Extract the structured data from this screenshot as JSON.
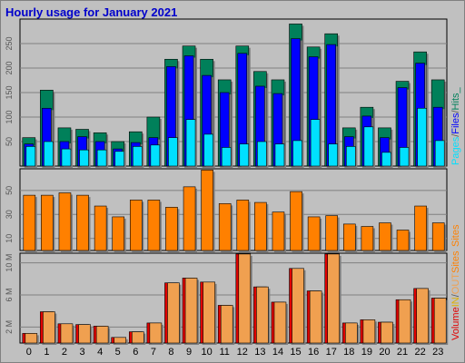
{
  "title": "Hourly usage for January 2021",
  "colors": {
    "hits": "#00805a",
    "files": "#0000ff",
    "pages": "#00e0ff",
    "sites": "#ff8000",
    "volume": "#e00000",
    "in": "#e0b000",
    "out": "#f0a050",
    "frame_bg": "#c0c0c0"
  },
  "chart_data": [
    {
      "type": "bar",
      "title": "Hourly usage for January 2021",
      "categories": [
        "0",
        "1",
        "2",
        "3",
        "4",
        "5",
        "6",
        "7",
        "8",
        "9",
        "10",
        "11",
        "12",
        "13",
        "14",
        "15",
        "16",
        "17",
        "18",
        "19",
        "20",
        "21",
        "22",
        "23"
      ],
      "yticks": [
        "50",
        "100",
        "150",
        "200",
        "250"
      ],
      "ylim": [
        0,
        300
      ],
      "grid": true,
      "side_label": [
        "Pages",
        "/",
        "Files",
        "/",
        "Hits",
        "_"
      ],
      "series": [
        {
          "name": "Hits",
          "values": [
            58,
            155,
            78,
            75,
            68,
            50,
            70,
            100,
            218,
            245,
            218,
            176,
            245,
            193,
            176,
            290,
            243,
            270,
            78,
            120,
            78,
            173,
            233,
            176
          ]
        },
        {
          "name": "Files",
          "values": [
            45,
            118,
            50,
            60,
            50,
            35,
            48,
            58,
            203,
            225,
            185,
            150,
            230,
            163,
            148,
            260,
            223,
            248,
            60,
            102,
            58,
            160,
            210,
            120
          ]
        },
        {
          "name": "Pages",
          "values": [
            40,
            50,
            35,
            33,
            33,
            30,
            40,
            43,
            58,
            95,
            65,
            38,
            45,
            50,
            45,
            52,
            95,
            45,
            40,
            80,
            28,
            38,
            118,
            52
          ]
        }
      ]
    },
    {
      "type": "bar",
      "categories": [
        "0",
        "1",
        "2",
        "3",
        "4",
        "5",
        "6",
        "7",
        "8",
        "9",
        "10",
        "11",
        "12",
        "13",
        "14",
        "15",
        "16",
        "17",
        "18",
        "19",
        "20",
        "21",
        "22",
        "23"
      ],
      "yticks": [
        "10",
        "30",
        "50"
      ],
      "ylim": [
        0,
        68
      ],
      "grid": true,
      "side_label": [
        "Sites"
      ],
      "series": [
        {
          "name": "Sites",
          "values": [
            46,
            46,
            48,
            46,
            37,
            28,
            42,
            42,
            36,
            53,
            67,
            39,
            42,
            40,
            32,
            49,
            28,
            29,
            22,
            20,
            23,
            17,
            37,
            23
          ]
        }
      ]
    },
    {
      "type": "bar",
      "categories": [
        "0",
        "1",
        "2",
        "3",
        "4",
        "5",
        "6",
        "7",
        "8",
        "9",
        "10",
        "11",
        "12",
        "13",
        "14",
        "15",
        "16",
        "17",
        "18",
        "19",
        "20",
        "21",
        "22",
        "23"
      ],
      "yticks": [
        "2 M",
        "6 M",
        "10 M"
      ],
      "ylim": [
        0,
        11.2
      ],
      "grid": true,
      "side_label": [
        "Volume",
        "IN",
        "/",
        "OUT",
        "Sites"
      ],
      "series": [
        {
          "name": "Volume",
          "values": [
            1.2,
            3.9,
            2.4,
            2.3,
            2.1,
            0.7,
            1.4,
            2.5,
            7.5,
            8.1,
            7.6,
            4.7,
            11.1,
            7.0,
            5.1,
            9.3,
            6.5,
            11.1,
            2.5,
            2.9,
            2.6,
            5.4,
            6.8,
            5.6
          ]
        },
        {
          "name": "OUT",
          "values": [
            1.2,
            3.9,
            2.4,
            2.3,
            2.1,
            0.7,
            1.4,
            2.5,
            7.5,
            8.1,
            7.6,
            4.7,
            11.1,
            7.0,
            5.1,
            9.3,
            6.5,
            11.1,
            2.5,
            2.9,
            2.6,
            5.4,
            6.8,
            5.6
          ]
        }
      ]
    }
  ]
}
